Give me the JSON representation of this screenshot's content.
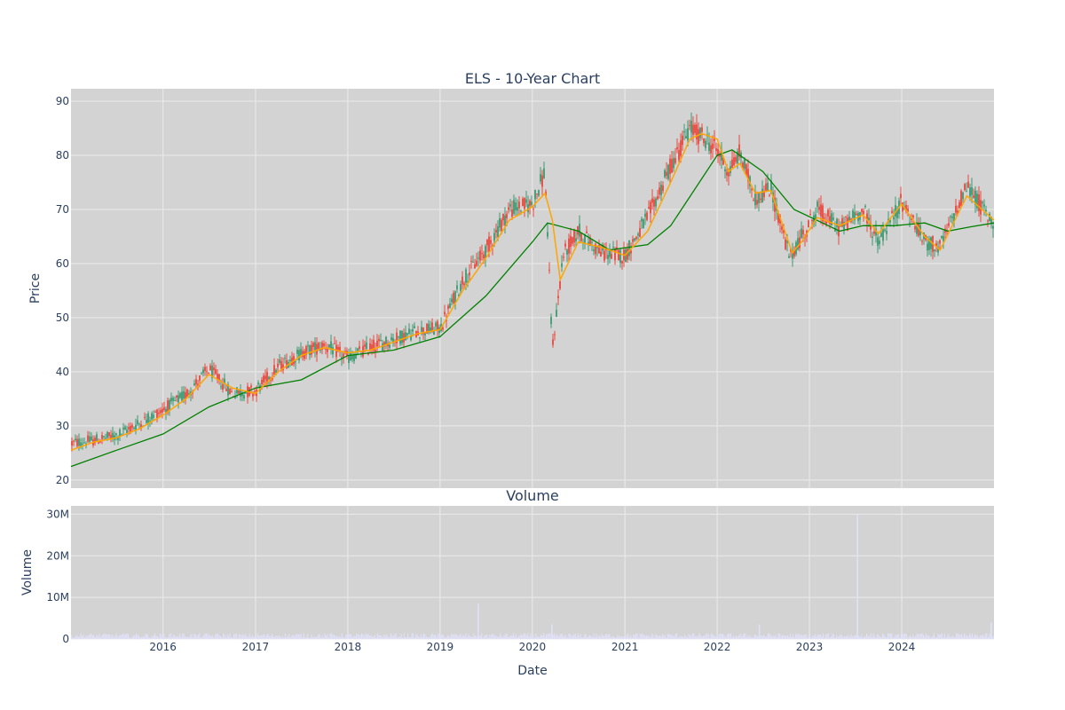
{
  "chart_data": [
    {
      "type": "candlestick",
      "title": "ELS - 10-Year Chart",
      "ylabel": "Price",
      "xlabel": "",
      "x_range": [
        "2015-01-02",
        "2024-12-31"
      ],
      "ylim": [
        18.5,
        92.3
      ],
      "y_ticks": [
        20,
        30,
        40,
        50,
        60,
        70,
        80,
        90
      ],
      "grid": true,
      "colors": {
        "plot_bg": "#d3d3d3",
        "grid": "#ebebeb",
        "increasing": "#3d9970",
        "decreasing": "#e8483e",
        "ma_short": "#ffa500",
        "ma_long": "#008000"
      },
      "price_path": [
        [
          "2015-01-02",
          26.8
        ],
        [
          "2015-04-01",
          27.3
        ],
        [
          "2015-07-01",
          28.2
        ],
        [
          "2015-10-01",
          30.5
        ],
        [
          "2016-01-01",
          33.0
        ],
        [
          "2016-04-01",
          35.8
        ],
        [
          "2016-07-01",
          40.5
        ],
        [
          "2016-10-01",
          36.0
        ],
        [
          "2017-01-01",
          36.5
        ],
        [
          "2017-04-01",
          41.0
        ],
        [
          "2017-07-01",
          43.5
        ],
        [
          "2017-10-01",
          45.0
        ],
        [
          "2018-01-01",
          42.5
        ],
        [
          "2018-04-01",
          44.5
        ],
        [
          "2018-07-01",
          46.0
        ],
        [
          "2018-10-01",
          47.5
        ],
        [
          "2019-01-01",
          48.0
        ],
        [
          "2019-04-01",
          57.0
        ],
        [
          "2019-07-01",
          62.5
        ],
        [
          "2019-10-01",
          70.0
        ],
        [
          "2020-01-01",
          71.0
        ],
        [
          "2020-02-20",
          77.0
        ],
        [
          "2020-03-20",
          44.0
        ],
        [
          "2020-05-01",
          61.5
        ],
        [
          "2020-07-01",
          66.0
        ],
        [
          "2020-10-01",
          62.0
        ],
        [
          "2021-01-01",
          61.5
        ],
        [
          "2021-04-01",
          68.5
        ],
        [
          "2021-07-01",
          78.0
        ],
        [
          "2021-09-15",
          85.0
        ],
        [
          "2021-11-01",
          83.5
        ],
        [
          "2022-01-01",
          81.0
        ],
        [
          "2022-02-15",
          77.0
        ],
        [
          "2022-04-01",
          80.5
        ],
        [
          "2022-06-01",
          72.0
        ],
        [
          "2022-08-01",
          74.0
        ],
        [
          "2022-10-15",
          61.0
        ],
        [
          "2022-12-01",
          65.0
        ],
        [
          "2023-02-01",
          70.0
        ],
        [
          "2023-05-01",
          66.5
        ],
        [
          "2023-08-01",
          70.0
        ],
        [
          "2023-10-01",
          64.0
        ],
        [
          "2024-01-01",
          71.5
        ],
        [
          "2024-04-01",
          64.0
        ],
        [
          "2024-06-01",
          63.0
        ],
        [
          "2024-09-15",
          74.5
        ],
        [
          "2024-12-31",
          67.0
        ]
      ],
      "ma_short_path": [
        [
          "2015-01-02",
          25.5
        ],
        [
          "2015-04-01",
          27.0
        ],
        [
          "2015-07-01",
          27.8
        ],
        [
          "2015-10-01",
          29.5
        ],
        [
          "2016-01-01",
          32.0
        ],
        [
          "2016-04-01",
          35.0
        ],
        [
          "2016-07-01",
          39.5
        ],
        [
          "2016-10-01",
          37.0
        ],
        [
          "2017-01-01",
          36.0
        ],
        [
          "2017-04-01",
          40.0
        ],
        [
          "2017-07-01",
          43.0
        ],
        [
          "2017-10-01",
          44.5
        ],
        [
          "2018-01-01",
          43.5
        ],
        [
          "2018-04-01",
          44.0
        ],
        [
          "2018-07-01",
          45.5
        ],
        [
          "2018-10-01",
          47.0
        ],
        [
          "2019-01-01",
          47.8
        ],
        [
          "2019-04-01",
          55.0
        ],
        [
          "2019-07-01",
          61.0
        ],
        [
          "2019-10-01",
          68.0
        ],
        [
          "2020-01-01",
          70.5
        ],
        [
          "2020-02-20",
          73.0
        ],
        [
          "2020-03-20",
          68.0
        ],
        [
          "2020-04-20",
          57.0
        ],
        [
          "2020-07-01",
          64.0
        ],
        [
          "2020-10-01",
          63.0
        ],
        [
          "2021-01-01",
          61.5
        ],
        [
          "2021-04-01",
          66.0
        ],
        [
          "2021-07-01",
          75.0
        ],
        [
          "2021-09-15",
          83.0
        ],
        [
          "2021-11-01",
          84.0
        ],
        [
          "2022-01-01",
          83.0
        ],
        [
          "2022-02-15",
          77.0
        ],
        [
          "2022-04-01",
          78.5
        ],
        [
          "2022-06-01",
          73.0
        ],
        [
          "2022-08-01",
          73.5
        ],
        [
          "2022-10-25",
          62.0
        ],
        [
          "2022-12-01",
          64.0
        ],
        [
          "2023-02-01",
          68.5
        ],
        [
          "2023-05-01",
          67.0
        ],
        [
          "2023-08-01",
          69.0
        ],
        [
          "2023-10-01",
          65.5
        ],
        [
          "2024-01-01",
          71.0
        ],
        [
          "2024-04-01",
          65.0
        ],
        [
          "2024-06-01",
          62.5
        ],
        [
          "2024-09-15",
          72.5
        ],
        [
          "2024-12-31",
          68.0
        ]
      ],
      "ma_long_path": [
        [
          "2015-01-02",
          22.5
        ],
        [
          "2015-07-01",
          25.5
        ],
        [
          "2016-01-01",
          28.5
        ],
        [
          "2016-07-01",
          33.5
        ],
        [
          "2017-01-01",
          37.0
        ],
        [
          "2017-07-01",
          38.5
        ],
        [
          "2018-01-01",
          43.0
        ],
        [
          "2018-07-01",
          44.0
        ],
        [
          "2019-01-01",
          46.5
        ],
        [
          "2019-07-01",
          54.0
        ],
        [
          "2020-01-01",
          64.0
        ],
        [
          "2020-03-01",
          67.5
        ],
        [
          "2020-07-01",
          66.0
        ],
        [
          "2020-11-01",
          62.5
        ],
        [
          "2021-04-01",
          63.5
        ],
        [
          "2021-07-01",
          67.0
        ],
        [
          "2022-01-01",
          80.0
        ],
        [
          "2022-03-01",
          81.0
        ],
        [
          "2022-07-01",
          77.0
        ],
        [
          "2022-11-01",
          70.0
        ],
        [
          "2023-05-01",
          66.0
        ],
        [
          "2023-08-01",
          67.0
        ],
        [
          "2023-12-01",
          67.0
        ],
        [
          "2024-04-01",
          67.5
        ],
        [
          "2024-07-01",
          66.0
        ],
        [
          "2024-10-01",
          66.8
        ],
        [
          "2024-12-31",
          67.5
        ]
      ]
    },
    {
      "type": "bar",
      "title": "Volume",
      "ylabel": "Volume",
      "xlabel": "Date",
      "ylim": [
        0,
        32000000
      ],
      "y_ticks": [
        0,
        10000000,
        20000000,
        30000000
      ],
      "y_tick_labels": [
        "0",
        "10M",
        "20M",
        "30M"
      ],
      "x_ticks": [
        "2016-01-01",
        "2017-01-01",
        "2018-01-01",
        "2019-01-01",
        "2020-01-01",
        "2021-01-01",
        "2022-01-01",
        "2023-01-01",
        "2024-01-01"
      ],
      "x_tick_labels": [
        "2016",
        "2017",
        "2018",
        "2019",
        "2020",
        "2021",
        "2022",
        "2023",
        "2024"
      ],
      "grid": true,
      "colors": {
        "bar": "#e0e0f8",
        "plot_bg": "#d3d3d3"
      },
      "typical_volume": 1000000,
      "spikes": [
        [
          "2019-06-01",
          8500000
        ],
        [
          "2020-03-18",
          3500000
        ],
        [
          "2022-06-17",
          3500000
        ],
        [
          "2023-07-10",
          30000000
        ],
        [
          "2024-12-20",
          4000000
        ]
      ]
    }
  ]
}
